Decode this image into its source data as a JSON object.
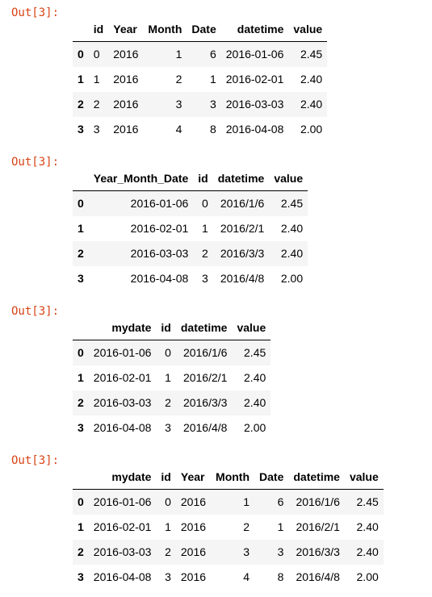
{
  "outputs": [
    {
      "prompt": "Out[3]:",
      "columns": [
        "",
        "id",
        "Year",
        "Month",
        "Date",
        "datetime",
        "value"
      ],
      "rows": [
        [
          "0",
          "0",
          "2016",
          "1",
          "6",
          "2016-01-06",
          "2.45"
        ],
        [
          "1",
          "1",
          "2016",
          "2",
          "1",
          "2016-02-01",
          "2.40"
        ],
        [
          "2",
          "2",
          "2016",
          "3",
          "3",
          "2016-03-03",
          "2.40"
        ],
        [
          "3",
          "3",
          "2016",
          "4",
          "8",
          "2016-04-08",
          "2.00"
        ]
      ]
    },
    {
      "prompt": "Out[3]:",
      "columns": [
        "",
        "Year_Month_Date",
        "id",
        "datetime",
        "value"
      ],
      "rows": [
        [
          "0",
          "2016-01-06",
          "0",
          "2016/1/6",
          "2.45"
        ],
        [
          "1",
          "2016-02-01",
          "1",
          "2016/2/1",
          "2.40"
        ],
        [
          "2",
          "2016-03-03",
          "2",
          "2016/3/3",
          "2.40"
        ],
        [
          "3",
          "2016-04-08",
          "3",
          "2016/4/8",
          "2.00"
        ]
      ]
    },
    {
      "prompt": "Out[3]:",
      "columns": [
        "",
        "mydate",
        "id",
        "datetime",
        "value"
      ],
      "rows": [
        [
          "0",
          "2016-01-06",
          "0",
          "2016/1/6",
          "2.45"
        ],
        [
          "1",
          "2016-02-01",
          "1",
          "2016/2/1",
          "2.40"
        ],
        [
          "2",
          "2016-03-03",
          "2",
          "2016/3/3",
          "2.40"
        ],
        [
          "3",
          "2016-04-08",
          "3",
          "2016/4/8",
          "2.00"
        ]
      ]
    },
    {
      "prompt": "Out[3]:",
      "columns": [
        "",
        "mydate",
        "id",
        "Year",
        "Month",
        "Date",
        "datetime",
        "value"
      ],
      "rows": [
        [
          "0",
          "2016-01-06",
          "0",
          "2016",
          "1",
          "6",
          "2016/1/6",
          "2.45"
        ],
        [
          "1",
          "2016-02-01",
          "1",
          "2016",
          "2",
          "1",
          "2016/2/1",
          "2.40"
        ],
        [
          "2",
          "2016-03-03",
          "2",
          "2016",
          "3",
          "3",
          "2016/3/3",
          "2.40"
        ],
        [
          "3",
          "2016-04-08",
          "3",
          "2016",
          "4",
          "8",
          "2016/4/8",
          "2.00"
        ]
      ]
    }
  ]
}
